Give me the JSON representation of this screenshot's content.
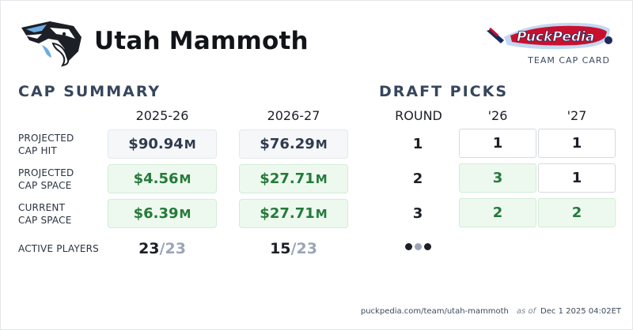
{
  "team": {
    "name": "Utah Mammoth",
    "logo_icon": "mammoth-logo-icon",
    "colors": {
      "primary": "#1c1f26",
      "accent": "#6cace4"
    }
  },
  "brand": {
    "logo_text": "PuckPedia",
    "subtitle": "TEAM CAP CARD",
    "colors": {
      "red": "#c8102e",
      "navy": "#1d2a5c",
      "light_blue": "#8fb8e8"
    }
  },
  "cap_summary": {
    "title": "CAP SUMMARY",
    "seasons": [
      "2025-26",
      "2026-27"
    ],
    "rows": [
      {
        "label_line1": "PROJECTED",
        "label_line2": "CAP HIT",
        "style": "neutral",
        "values": [
          {
            "amount": "$90.94",
            "unit": "M"
          },
          {
            "amount": "$76.29",
            "unit": "M"
          }
        ]
      },
      {
        "label_line1": "PROJECTED",
        "label_line2": "CAP SPACE",
        "style": "positive",
        "values": [
          {
            "amount": "$4.56",
            "unit": "M"
          },
          {
            "amount": "$27.71",
            "unit": "M"
          }
        ]
      },
      {
        "label_line1": "CURRENT",
        "label_line2": "CAP SPACE",
        "style": "positive",
        "values": [
          {
            "amount": "$6.39",
            "unit": "M"
          },
          {
            "amount": "$27.71",
            "unit": "M"
          }
        ]
      }
    ],
    "active_players": {
      "label": "ACTIVE PLAYERS",
      "values": [
        {
          "count": "23",
          "max": "/23"
        },
        {
          "count": "15",
          "max": "/23"
        }
      ]
    },
    "colors": {
      "positive_text": "#247a3a",
      "positive_bg": "#edf9ee",
      "neutral_text": "#2f3b4e"
    }
  },
  "draft_picks": {
    "title": "DRAFT PICKS",
    "headers": [
      "ROUND",
      "'26",
      "'27"
    ],
    "rows": [
      {
        "round": "1",
        "picks": [
          {
            "value": "1",
            "style": "normal"
          },
          {
            "value": "1",
            "style": "normal"
          }
        ]
      },
      {
        "round": "2",
        "picks": [
          {
            "value": "3",
            "style": "extra"
          },
          {
            "value": "1",
            "style": "normal"
          }
        ]
      },
      {
        "round": "3",
        "picks": [
          {
            "value": "2",
            "style": "extra"
          },
          {
            "value": "2",
            "style": "extra"
          }
        ]
      }
    ],
    "more_indicator": {
      "icon": "more-dots-icon",
      "dot_colors": [
        "#1c1f26",
        "#9aa5b6",
        "#1c1f26"
      ]
    }
  },
  "footer": {
    "url": "puckpedia.com/team/utah-mammoth",
    "as_of_label": "as of",
    "timestamp": "Dec 1 2025 04:02ET"
  }
}
